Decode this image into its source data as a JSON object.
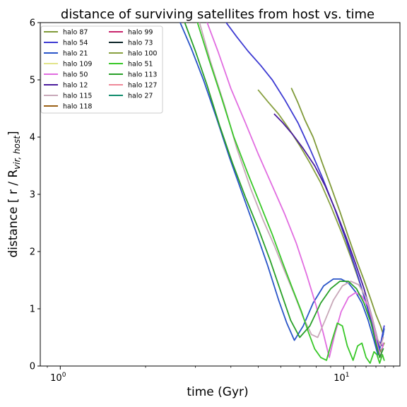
{
  "chart_data": {
    "type": "line",
    "title": "distance of surviving satellites from host vs. time",
    "xlabel": "time (Gyr)",
    "ylabel_main": "distance [ r / R",
    "ylabel_sub": "vir, host",
    "ylabel_close": "]",
    "xscale": "log",
    "xlim": [
      0.85,
      15.8
    ],
    "ylim": [
      0,
      6
    ],
    "yticks": [
      "0",
      "1",
      "2",
      "3",
      "4",
      "5",
      "6"
    ],
    "xticks": [
      {
        "value": 1,
        "base": "10",
        "exp": "0"
      },
      {
        "value": 10,
        "base": "10",
        "exp": "1"
      }
    ],
    "grid": false,
    "legend_position": "upper-left",
    "legend": [
      {
        "name": "halo 87",
        "color": "#7f9a38"
      },
      {
        "name": "halo 54",
        "color": "#3d3ad2"
      },
      {
        "name": "halo 21",
        "color": "#2a55c8"
      },
      {
        "name": "halo 109",
        "color": "#e1e48a"
      },
      {
        "name": "halo 50",
        "color": "#e16ce0"
      },
      {
        "name": "halo 12",
        "color": "#4a1c9c"
      },
      {
        "name": "halo 115",
        "color": "#c8a8b8"
      },
      {
        "name": "halo 118",
        "color": "#9a6014"
      },
      {
        "name": "halo 99",
        "color": "#c8246c"
      },
      {
        "name": "halo 73",
        "color": "#0c2428"
      },
      {
        "name": "halo 100",
        "color": "#88a040"
      },
      {
        "name": "halo 51",
        "color": "#38c828"
      },
      {
        "name": "halo 113",
        "color": "#28a028"
      },
      {
        "name": "halo 127",
        "color": "#ee8898"
      },
      {
        "name": "halo 27",
        "color": "#108c6c"
      }
    ],
    "series": [
      {
        "name": "halo 87",
        "color": "#7f9a38",
        "x": [
          6.55,
          6.9,
          7.3,
          7.8,
          8.4,
          9.0,
          9.7,
          10.4,
          11.1,
          11.8,
          12.5,
          13.0,
          13.5,
          13.8
        ],
        "y": [
          4.85,
          4.6,
          4.3,
          4.0,
          3.55,
          3.15,
          2.7,
          2.25,
          1.85,
          1.5,
          1.15,
          0.9,
          0.7,
          0.55
        ]
      },
      {
        "name": "halo 100",
        "color": "#88a040",
        "x": [
          5.0,
          5.4,
          5.9,
          6.4,
          7.0,
          7.6,
          8.3,
          9.0,
          9.8,
          10.6,
          11.4,
          12.2,
          12.9,
          13.5,
          13.9
        ],
        "y": [
          4.82,
          4.62,
          4.4,
          4.15,
          3.85,
          3.55,
          3.2,
          2.8,
          2.35,
          1.9,
          1.45,
          1.0,
          0.6,
          0.25,
          0.4
        ]
      },
      {
        "name": "halo 54",
        "color": "#3d3ad2",
        "x": [
          3.85,
          4.2,
          4.6,
          5.1,
          5.6,
          6.2,
          6.9,
          7.6,
          8.4,
          9.3,
          10.2,
          11.1,
          12.0,
          12.8,
          13.4,
          13.9
        ],
        "y": [
          6.0,
          5.75,
          5.5,
          5.25,
          5.0,
          4.65,
          4.25,
          3.8,
          3.3,
          2.75,
          2.2,
          1.65,
          1.1,
          0.6,
          0.3,
          0.7
        ]
      },
      {
        "name": "halo 12",
        "color": "#4a1c9c",
        "x": [
          5.7,
          6.1,
          6.6,
          7.2,
          7.9,
          8.6,
          9.4,
          10.2,
          11.0,
          11.8,
          12.6,
          13.2,
          13.7
        ],
        "y": [
          4.4,
          4.25,
          4.05,
          3.8,
          3.5,
          3.15,
          2.7,
          2.25,
          1.8,
          1.35,
          0.85,
          0.45,
          0.35
        ]
      },
      {
        "name": "halo 21",
        "color": "#2a55c8",
        "x": [
          2.65,
          2.9,
          3.2,
          3.55,
          3.95,
          4.4,
          4.9,
          5.4,
          5.9,
          6.3,
          6.7,
          7.2,
          7.8,
          8.5,
          9.2,
          9.8,
          10.4,
          11.0,
          11.6,
          12.2,
          12.8,
          13.2,
          13.6,
          13.9
        ],
        "y": [
          6.0,
          5.55,
          5.0,
          4.35,
          3.65,
          3.0,
          2.35,
          1.75,
          1.15,
          0.75,
          0.45,
          0.7,
          1.1,
          1.4,
          1.52,
          1.52,
          1.45,
          1.3,
          1.1,
          0.8,
          0.45,
          0.2,
          0.4,
          0.65
        ]
      },
      {
        "name": "halo 50",
        "color": "#e16ce0",
        "x": [
          3.3,
          3.6,
          4.0,
          4.5,
          5.0,
          5.6,
          6.2,
          6.8,
          7.4,
          8.0,
          8.5,
          8.9,
          9.3,
          9.8,
          10.4,
          11.0,
          11.6,
          12.2,
          12.7,
          13.1,
          13.5,
          13.8
        ],
        "y": [
          6.0,
          5.5,
          4.85,
          4.25,
          3.7,
          3.15,
          2.65,
          2.15,
          1.6,
          1.05,
          0.55,
          0.15,
          0.55,
          0.95,
          1.2,
          1.28,
          1.22,
          1.05,
          0.75,
          0.4,
          0.15,
          0.4
        ]
      },
      {
        "name": "halo 115",
        "color": "#c8a8b8",
        "x": [
          3.1,
          3.4,
          3.8,
          4.2,
          4.7,
          5.2,
          5.7,
          6.2,
          6.7,
          7.2,
          7.7,
          8.1,
          8.6,
          9.2,
          9.9,
          10.6,
          11.3,
          12.0,
          12.6,
          13.1,
          13.5,
          13.8
        ],
        "y": [
          6.0,
          5.3,
          4.55,
          3.8,
          3.1,
          2.55,
          2.1,
          1.65,
          1.25,
          0.85,
          0.55,
          0.5,
          0.8,
          1.15,
          1.4,
          1.48,
          1.42,
          1.2,
          0.85,
          0.5,
          0.35,
          0.5
        ]
      },
      {
        "name": "halo 51",
        "color": "#38c828",
        "x": [
          3.05,
          3.35,
          3.7,
          4.1,
          4.6,
          5.1,
          5.6,
          6.1,
          6.6,
          7.1,
          7.5,
          7.9,
          8.3,
          8.7,
          9.1,
          9.5,
          9.9,
          10.3,
          10.8,
          11.2,
          11.6,
          12.0,
          12.4,
          12.8,
          13.1,
          13.4,
          13.7,
          13.9
        ],
        "y": [
          6.0,
          5.35,
          4.7,
          4.0,
          3.35,
          2.8,
          2.3,
          1.8,
          1.35,
          0.95,
          0.6,
          0.3,
          0.15,
          0.1,
          0.45,
          0.75,
          0.7,
          0.35,
          0.1,
          0.35,
          0.4,
          0.15,
          0.05,
          0.25,
          0.2,
          0.05,
          0.2,
          0.1
        ]
      },
      {
        "name": "halo 113",
        "color": "#28a028",
        "x": [
          2.75,
          3.0,
          3.3,
          3.65,
          4.05,
          4.5,
          5.0,
          5.5,
          6.0,
          6.5,
          7.0,
          7.6,
          8.3,
          9.0,
          9.7,
          10.4,
          11.1,
          11.8,
          12.5,
          13.0,
          13.4,
          13.8
        ],
        "y": [
          6.0,
          5.5,
          4.9,
          4.2,
          3.55,
          2.95,
          2.4,
          1.85,
          1.3,
          0.8,
          0.5,
          0.7,
          1.1,
          1.35,
          1.48,
          1.48,
          1.35,
          1.1,
          0.75,
          0.4,
          0.15,
          0.3
        ]
      }
    ]
  }
}
